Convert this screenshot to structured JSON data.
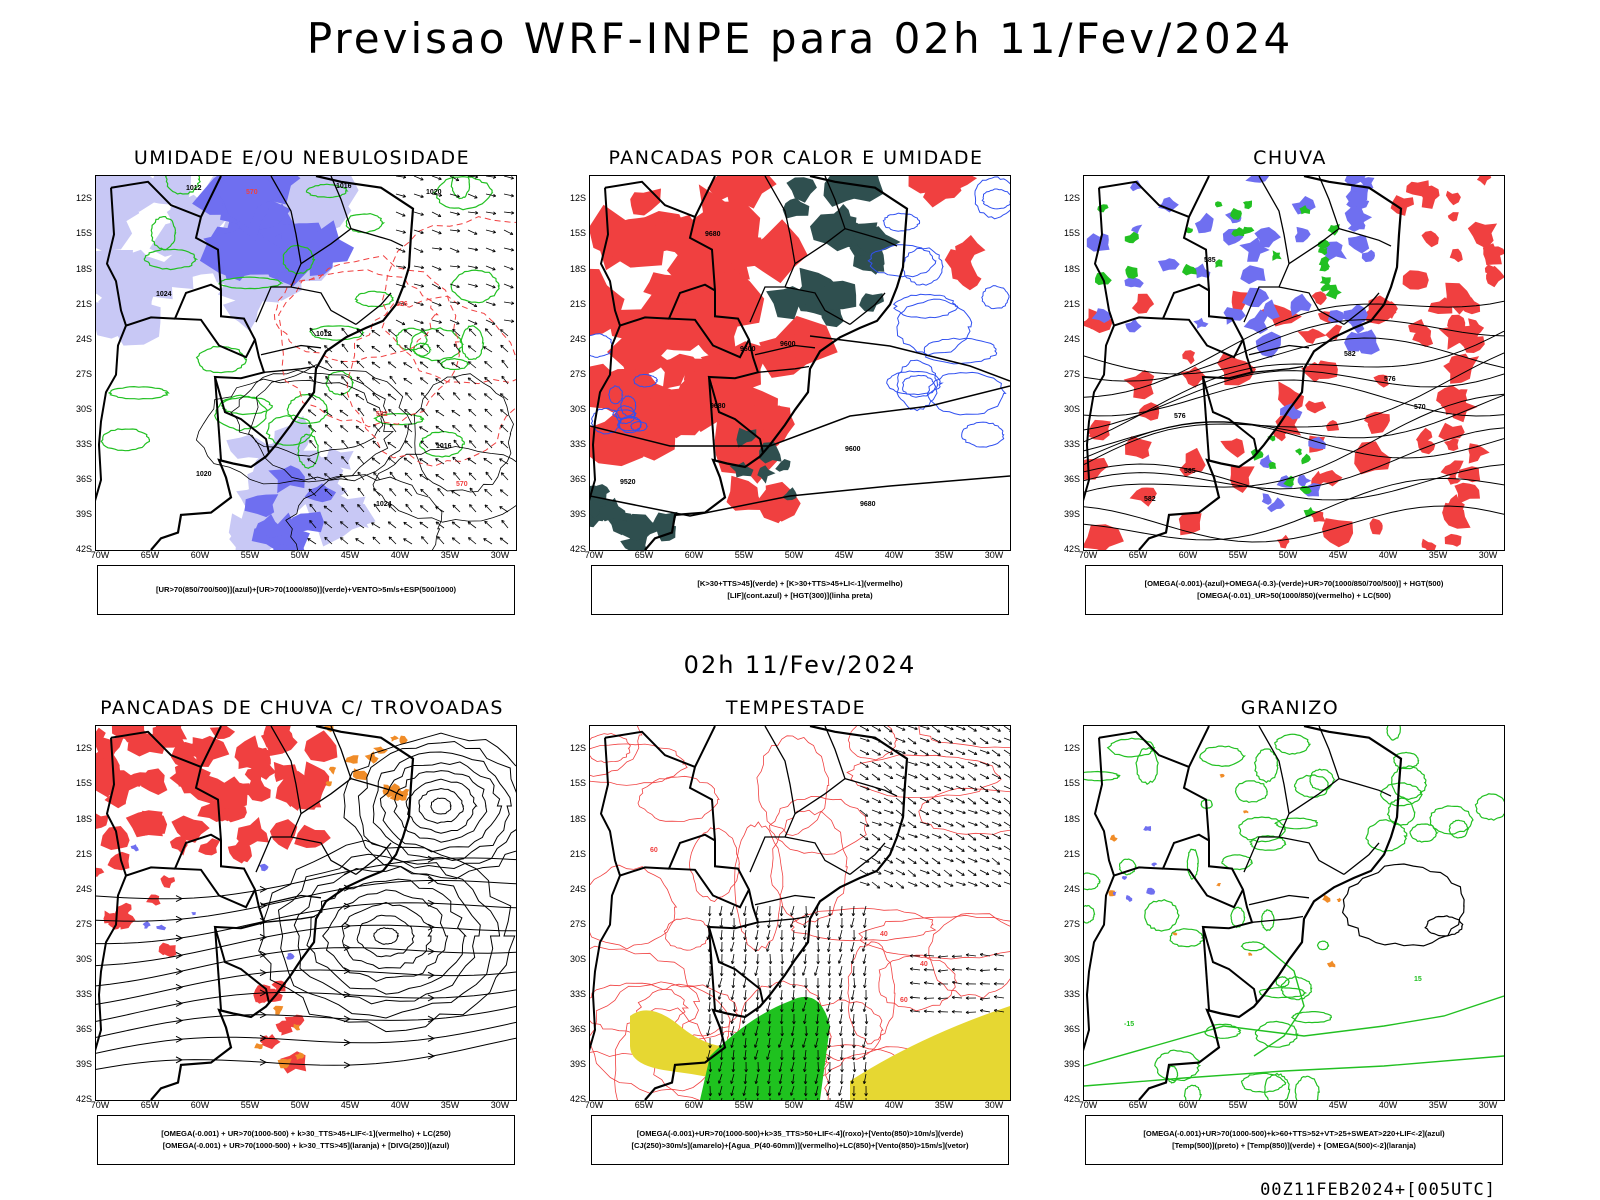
{
  "main_title": "Previsao WRF-INPE  para 02h 11/Fev/2024",
  "mid_date": "02h 11/Fev/2024",
  "footer_stamp": "00Z11FEB2024+[005UTC]",
  "axes": {
    "lat_labels": [
      "12S",
      "15S",
      "18S",
      "21S",
      "24S",
      "27S",
      "30S",
      "33S",
      "36S",
      "39S",
      "42S"
    ],
    "lon_labels": [
      "70W",
      "65W",
      "60W",
      "55W",
      "50W",
      "45W",
      "40W",
      "35W",
      "30W"
    ]
  },
  "colors": {
    "humidity_blue": "#6f6ff0",
    "humidity_light_blue": "#c8c8f5",
    "green_contour": "#22c022",
    "red": "#f04040",
    "dark_teal": "#2f4f4f",
    "blue_contour": "#3050f0",
    "orange": "#f08c28",
    "yellow": "#e6d732",
    "bright_green": "#1fc21f",
    "black": "#000000"
  },
  "panels": [
    {
      "title": "UMIDADE E/OU NEBULOSIDADE",
      "legend": [
        "[UR>70(850/700/500)](azul)+[UR>70(1000/850)](verde)+VENTO>5m/s+ESP(500/1000)"
      ],
      "contour_labels": [
        "1012",
        "1016",
        "1020",
        "1024",
        "570",
        "576",
        "582"
      ]
    },
    {
      "title": "PANCADAS POR CALOR E UMIDADE",
      "legend": [
        "[K>30+TTS>45](verde) + [K>30+TTS>45+LI<-1](vermelho)",
        "[LIF](cont.azul) + [HGT(300)](linha preta)"
      ],
      "contour_labels": [
        "9680",
        "9600",
        "9520"
      ]
    },
    {
      "title": "CHUVA",
      "legend": [
        "[OMEGA(-0.001)-(azul)+OMEGA(-0.3)-(verde)+UR>70(1000/850/700/500)] + HGT(500)",
        "[OMEGA(-0.01)_UR>50(1000/850)(vermelho) + LC(500)"
      ],
      "contour_labels": [
        "585",
        "582",
        "576",
        "570"
      ]
    },
    {
      "title": "PANCADAS DE CHUVA C/ TROVOADAS",
      "legend": [
        "[OMEGA(-0.001) + UR>70(1000-500) + k>30_TTS>45+LIF<-1](vermelho) + LC(250)",
        "[OMEGA(-0.001) + UR>70(1000-500) + k>30_TTS>45](laranja) + [DIVG(250)](azul)"
      ],
      "contour_labels": []
    },
    {
      "title": "TEMPESTADE",
      "legend": [
        "[OMEGA(-0.001)+UR>70(1000-500)+k>35_TTS>50+LIF<-4](roxo)+[Vento(850)>10m/s](verde)",
        "[CJ(250)>30m/s](amarelo)+[Agua_P(40-60mm)](vermelho)+LC(850)+[Vento(850)>15m/s](vetor)"
      ],
      "contour_labels": [
        "40",
        "60"
      ]
    },
    {
      "title": "GRANIZO",
      "legend": [
        "[OMEGA(-0.001)+UR>70(1000-500)+k>60+TTS>52+VT>25+SWEAT>220+LIF<-2](azul)",
        "[Temp(500)](preto) + [Temp(850)](verde) + [OMEGA(500)<-2](laranja)"
      ],
      "contour_labels": [
        "15",
        "-15"
      ]
    }
  ]
}
